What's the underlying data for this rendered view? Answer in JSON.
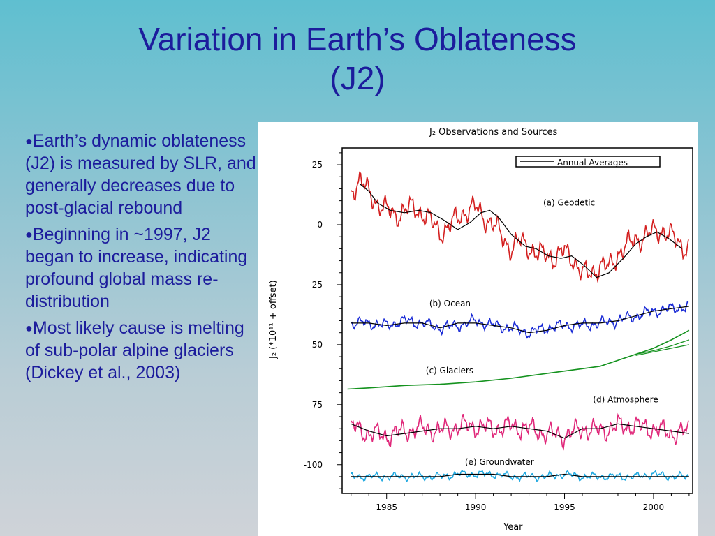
{
  "slide": {
    "title_line1": "Variation in Earth’s Oblateness",
    "title_line2": "(J2)"
  },
  "bullets": [
    "Earth’s dynamic oblateness (J2) is measured by SLR, and generally decreases due to post-glacial rebound",
    "Beginning in ~1997, J2 began to increase, indicating profound global mass re-distribution",
    "Most likely cause is melting of sub-polar alpine glaciers (Dickey et al., 2003)"
  ],
  "colors": {
    "title_text": "#1c1c9c",
    "geodetic": "#d42020",
    "ocean": "#1a2bd6",
    "glaciers": "#14921e",
    "atmosphere": "#e0287a",
    "groundwater": "#1ea8e0",
    "annual": "#000000"
  },
  "chart_data": {
    "type": "line",
    "title": "J₂ Observations and Sources",
    "xlabel": "Year",
    "ylabel": "J₂ (*10¹¹ + offset)",
    "xlim": [
      1982.5,
      2002.2
    ],
    "ylim": [
      -112,
      32
    ],
    "x_ticks": [
      1985,
      1990,
      1995,
      2000
    ],
    "y_ticks": [
      25,
      0,
      -25,
      -50,
      -75,
      -100
    ],
    "grid": false,
    "legend": {
      "position": "top-right",
      "label": "Annual Averages"
    },
    "series": [
      {
        "name": "(a) Geodetic",
        "color_key": "geodetic",
        "label_at": [
          1993.8,
          8
        ],
        "x": [
          1983,
          1983.5,
          1984,
          1984.5,
          1985,
          1985.5,
          1986,
          1986.5,
          1987,
          1987.5,
          1988,
          1988.5,
          1989,
          1989.5,
          1990,
          1990.5,
          1991,
          1991.5,
          1992,
          1992.5,
          1993,
          1993.5,
          1994,
          1994.5,
          1995,
          1995.5,
          1996,
          1996.5,
          1997,
          1997.5,
          1998,
          1998.5,
          1999,
          1999.5,
          2000,
          2000.5,
          2001,
          2001.5,
          2002
        ],
        "y": [
          14,
          19,
          13,
          9,
          6,
          4,
          6,
          7,
          5,
          1,
          -3,
          -1,
          3,
          6,
          7,
          3,
          0,
          -5,
          -10,
          -7,
          -9,
          -13,
          -12,
          -14,
          -11,
          -14,
          -21,
          -20,
          -17,
          -18,
          -12,
          -9,
          -6,
          -5,
          -3,
          -2,
          -5,
          -8,
          -10
        ],
        "annual": [
          17,
          14,
          9,
          6,
          5,
          6,
          5,
          2,
          -2,
          1,
          5,
          6,
          3,
          -4,
          -9,
          -10,
          -13,
          -14,
          -13,
          -17,
          -22,
          -20,
          -14,
          -8,
          -5,
          -3,
          -6,
          -10
        ],
        "annual_x": [
          1983.5,
          1984,
          1984.5,
          1985.2,
          1986,
          1986.8,
          1987.5,
          1988.2,
          1989,
          1989.7,
          1990.3,
          1990.8,
          1991.3,
          1992,
          1992.8,
          1993.4,
          1994.1,
          1994.8,
          1995.4,
          1996.1,
          1996.8,
          1997.5,
          1998.3,
          1999,
          1999.6,
          2000.2,
          2000.9,
          2001.6
        ]
      },
      {
        "name": "(b) Ocean",
        "color_key": "ocean",
        "label_at": [
          1987.4,
          -34
        ],
        "x": [
          1983,
          1984,
          1985,
          1986,
          1987,
          1988,
          1989,
          1990,
          1991,
          1992,
          1993,
          1994,
          1995,
          1996,
          1997,
          1998,
          1999,
          2000,
          2001,
          2002
        ],
        "y": [
          -41,
          -41,
          -42,
          -40,
          -41,
          -43,
          -42,
          -40,
          -42,
          -43,
          -45,
          -43,
          -42,
          -42,
          -41,
          -40,
          -38,
          -36,
          -35,
          -34
        ],
        "annual": [
          -41,
          -41,
          -42,
          -41,
          -41,
          -43,
          -41,
          -41,
          -42,
          -43,
          -45,
          -44,
          -42,
          -41,
          -41,
          -40,
          -38,
          -36,
          -35,
          -34
        ]
      },
      {
        "name": "(c) Glaciers",
        "color_key": "glaciers",
        "label_at": [
          1987.2,
          -62
        ],
        "x": [
          1982.8,
          1984,
          1986,
          1988,
          1990,
          1992,
          1994,
          1996,
          1997,
          1998,
          1999,
          2000,
          2001,
          2002
        ],
        "y": [
          -68.5,
          -68,
          -67,
          -66.5,
          -65.5,
          -64,
          -62,
          -60,
          -59,
          -56.5,
          -54,
          -51.5,
          -48,
          -44
        ],
        "branches": [
          {
            "x": [
              1999,
              2000,
              2001,
              2002
            ],
            "y": [
              -54,
              -52.5,
              -50.5,
              -48
            ]
          },
          {
            "x": [
              1999,
              2000,
              2001,
              2002
            ],
            "y": [
              -54.5,
              -53,
              -51.5,
              -50
            ]
          }
        ]
      },
      {
        "name": "(d) Atmosphere",
        "color_key": "atmosphere",
        "label_at": [
          1996.6,
          -74
        ],
        "x": [
          1983,
          1984,
          1985,
          1986,
          1987,
          1988,
          1989,
          1990,
          1991,
          1992,
          1993,
          1994,
          1995,
          1996,
          1997,
          1998,
          1999,
          2000,
          2001,
          2002
        ],
        "y": [
          -84,
          -87,
          -88,
          -86,
          -85,
          -86,
          -84,
          -84,
          -85,
          -84,
          -85,
          -87,
          -88,
          -85,
          -86,
          -84,
          -84,
          -85,
          -87,
          -86
        ],
        "annual": [
          -83,
          -86,
          -88,
          -87,
          -86,
          -85,
          -85,
          -84,
          -85,
          -84,
          -85,
          -86,
          -89,
          -85,
          -85,
          -83,
          -84,
          -85,
          -86,
          -87
        ]
      },
      {
        "name": "(e) Groundwater",
        "color_key": "groundwater",
        "label_at": [
          1989.4,
          -100
        ],
        "x": [
          1983,
          1984,
          1985,
          1986,
          1987,
          1988,
          1989,
          1990,
          1991,
          1992,
          1993,
          1994,
          1995,
          1996,
          1997,
          1998,
          1999,
          2000,
          2001,
          2002
        ],
        "y": [
          -105,
          -105,
          -105,
          -105,
          -105,
          -105,
          -104,
          -104,
          -104,
          -105,
          -105,
          -105,
          -104,
          -105,
          -105,
          -105,
          -105,
          -104,
          -105,
          -105
        ],
        "annual": [
          -105,
          -105,
          -105,
          -105,
          -105,
          -105,
          -104,
          -104,
          -104,
          -105,
          -105,
          -105,
          -104,
          -105,
          -105,
          -105,
          -105,
          -105,
          -105,
          -105
        ]
      }
    ]
  }
}
